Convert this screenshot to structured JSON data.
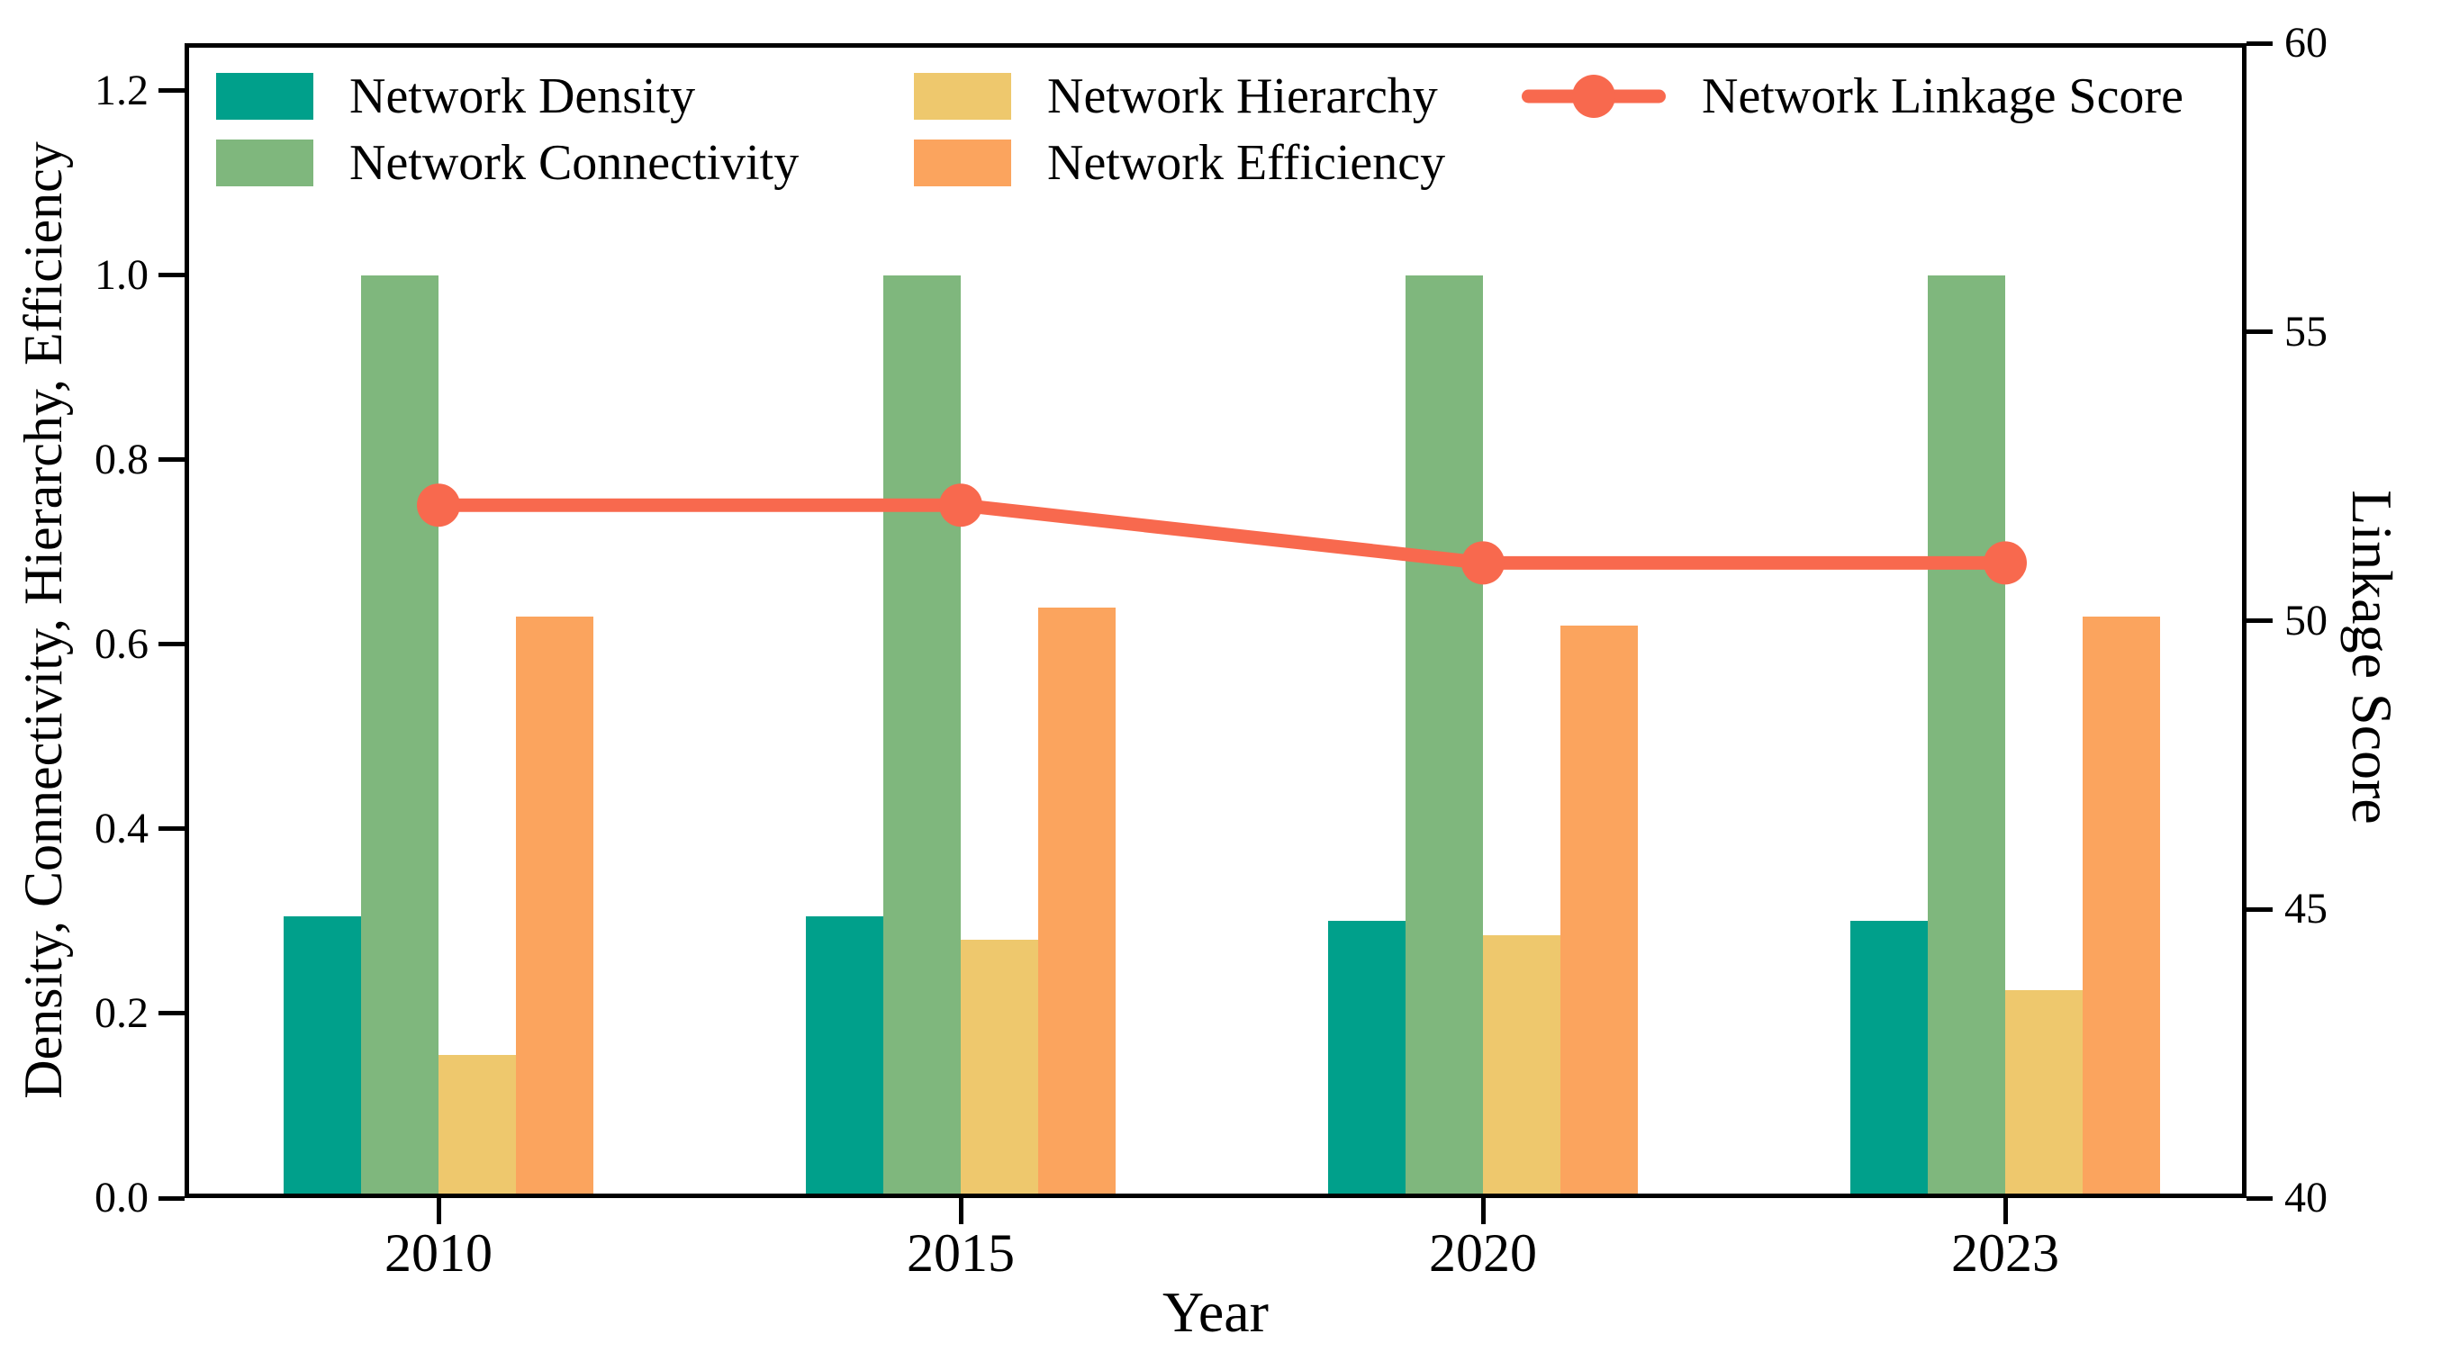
{
  "figure": {
    "background": "#ffffff",
    "text_color": "#000000",
    "spine_color": "#000000"
  },
  "chart_data": {
    "type": "bar+line",
    "categories": [
      "2010",
      "2015",
      "2020",
      "2023"
    ],
    "series": [
      {
        "name": "Network Density",
        "type": "bar",
        "axis": "left",
        "color": "#00A08B",
        "values": [
          0.305,
          0.305,
          0.3,
          0.3
        ]
      },
      {
        "name": "Network Connectivity",
        "type": "bar",
        "axis": "left",
        "color": "#7FB77D",
        "values": [
          1.0,
          1.0,
          1.0,
          1.0
        ]
      },
      {
        "name": "Network Hierarchy",
        "type": "bar",
        "axis": "left",
        "color": "#EEC86D",
        "values": [
          0.155,
          0.28,
          0.285,
          0.225
        ]
      },
      {
        "name": "Network Efficiency",
        "type": "bar",
        "axis": "left",
        "color": "#FBA45E",
        "values": [
          0.63,
          0.64,
          0.62,
          0.63
        ]
      },
      {
        "name": "Network Linkage Score",
        "type": "line",
        "axis": "right",
        "color": "#F8694E",
        "values": [
          52,
          52,
          51,
          51
        ]
      }
    ],
    "axes": {
      "x": {
        "label": "Year",
        "tick_labels": [
          "2010",
          "2015",
          "2020",
          "2023"
        ]
      },
      "left": {
        "label": "Density, Connectivity, Hierarchy, Efficiency",
        "tick_labels": [
          "0.0",
          "0.2",
          "0.4",
          "0.6",
          "0.8",
          "1.0",
          "1.2"
        ],
        "min": 0,
        "frame_top_value": 1.2517
      },
      "right": {
        "label": "Linkage Score",
        "tick_labels": [
          "40",
          "45",
          "50",
          "55",
          "60"
        ],
        "min": 40,
        "max": 60
      }
    },
    "legend": {
      "entries": [
        {
          "label": "Network Density",
          "swatch": "patch",
          "color": "#00A08B",
          "col": 0,
          "row": 0
        },
        {
          "label": "Network Connectivity",
          "swatch": "patch",
          "color": "#7FB77D",
          "col": 0,
          "row": 1
        },
        {
          "label": "Network Hierarchy",
          "swatch": "patch",
          "color": "#EEC86D",
          "col": 1,
          "row": 0
        },
        {
          "label": "Network Efficiency",
          "swatch": "patch",
          "color": "#FBA45E",
          "col": 1,
          "row": 1
        },
        {
          "label": "Network Linkage Score",
          "swatch": "line",
          "color": "#F8694E",
          "col": 2,
          "row": 0
        }
      ]
    }
  }
}
